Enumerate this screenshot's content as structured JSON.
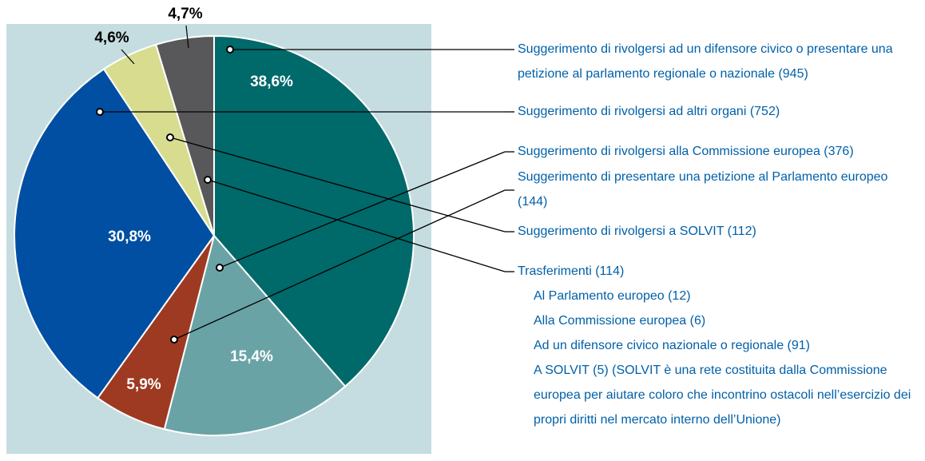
{
  "chart_data": {
    "type": "pie",
    "categories": [
      "Suggerimento di rivolgersi ad un difensore civico o presentare una petizione al parlamento regionale o nazionale (945)",
      "Suggerimento di rivolgersi alla Commissione europea (376)",
      "Suggerimento di presentare una petizione al Parlamento europeo (144)",
      "Suggerimento di rivolgersi ad altri organi (752)",
      "Suggerimento di rivolgersi a SOLVIT (112)",
      "Trasferimenti (114)"
    ],
    "values": [
      38.6,
      15.4,
      5.9,
      30.8,
      4.6,
      4.7
    ],
    "value_labels": [
      "38,6%",
      "15,4%",
      "5,9%",
      "30,8%",
      "4,6%",
      "4,7%"
    ],
    "colors": [
      "#00696a",
      "#6aa3a6",
      "#9e3a22",
      "#004fa2",
      "#d8dc8f",
      "#58585a"
    ],
    "transfers_breakdown": [
      "Al Parlamento europeo (12)",
      "Alla Commissione europea (6)",
      "Ad un difensore civico nazionale o regionale (91)",
      "A SOLVIT (5) (SOLVIT è una rete costituita dalla Commissione europea per aiutare coloro che incontrino ostacoli nell’esercizio dei propri diritti nel mercato interno dell’Unione)"
    ]
  }
}
